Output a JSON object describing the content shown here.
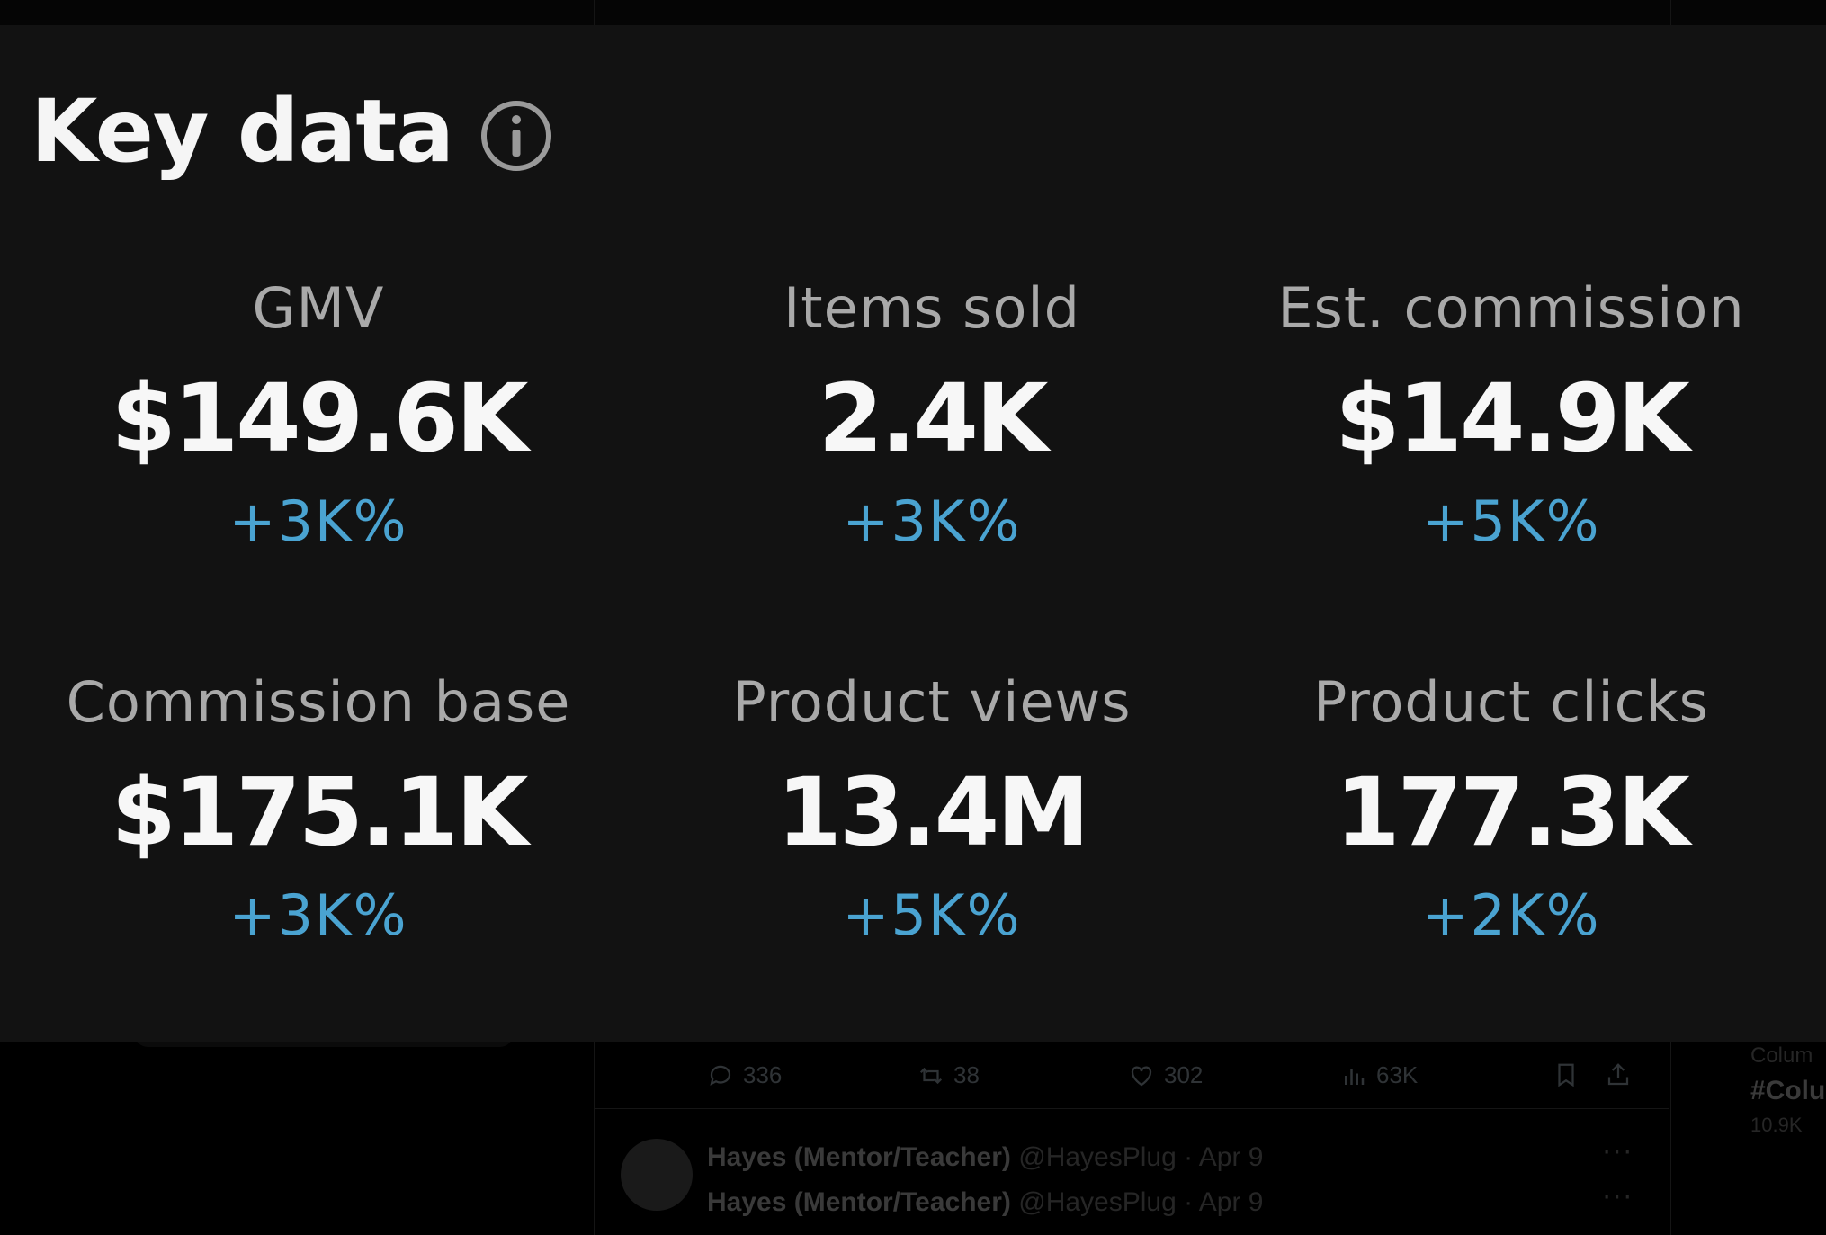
{
  "card": {
    "title": "Key data",
    "metrics": [
      {
        "label": "GMV",
        "value": "$149.6K",
        "change": "+3K%"
      },
      {
        "label": "Items sold",
        "value": "2.4K",
        "change": "+3K%"
      },
      {
        "label": "Est. commission",
        "value": "$14.9K",
        "change": "+5K%"
      },
      {
        "label": "Commission base",
        "value": "$175.1K",
        "change": "+3K%"
      },
      {
        "label": "Product views",
        "value": "13.4M",
        "change": "+5K%"
      },
      {
        "label": "Product clicks",
        "value": "177.3K",
        "change": "+2K%"
      }
    ],
    "accent_color": "#4aa3d1"
  },
  "background": {
    "tweet_actions": {
      "replies": "336",
      "retweets": "38",
      "likes": "302",
      "views": "63K"
    },
    "tweets": [
      {
        "name": "Hayes (Mentor/Teacher)",
        "handle": "@HayesPlug · Apr 9"
      },
      {
        "name": "Hayes (Mentor/Teacher)",
        "handle": "@HayesPlug · Apr 9"
      }
    ],
    "trend": {
      "category": "Colum",
      "tag": "#Colu",
      "count": "10.9K"
    }
  }
}
